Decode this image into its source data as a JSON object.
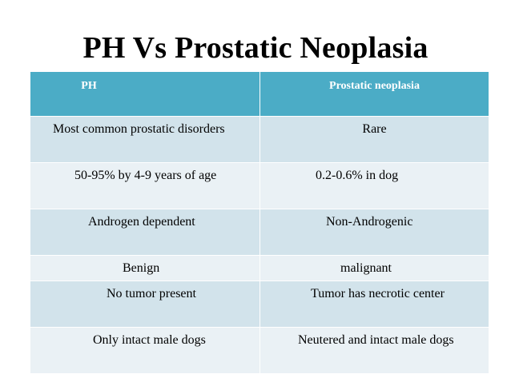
{
  "slide": {
    "title": "PH Vs Prostatic Neoplasia"
  },
  "table": {
    "headers": [
      "PH",
      "Prostatic neoplasia"
    ],
    "rows": [
      [
        "Most common prostatic disorders",
        "Rare"
      ],
      [
        "50-95%  by 4-9 years of age",
        "0.2-0.6%  in dog"
      ],
      [
        "Androgen dependent",
        "Non-Androgenic"
      ],
      [
        "Benign",
        "malignant"
      ],
      [
        "No tumor present",
        "Tumor has necrotic center"
      ],
      [
        "Only intact male dogs",
        "Neutered and intact male dogs"
      ]
    ]
  },
  "colors": {
    "header_bg": "#4bacc6",
    "row_bg": "#d2e3eb",
    "row_alt_bg": "#eaf1f5"
  }
}
